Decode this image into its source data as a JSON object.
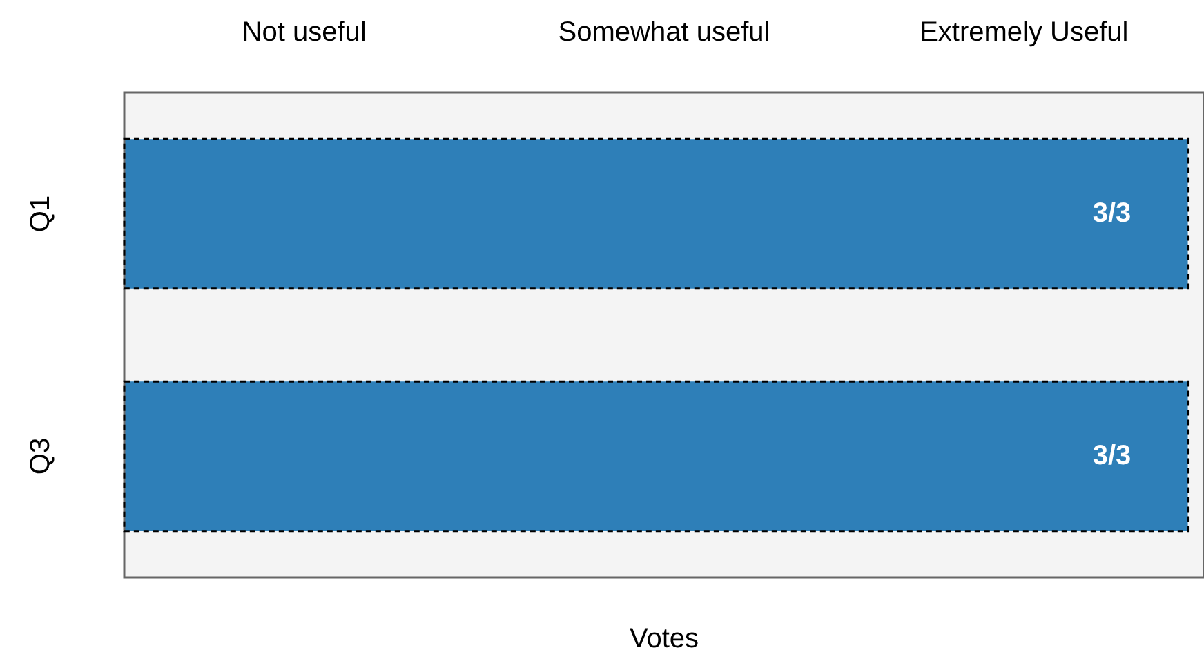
{
  "chart_data": {
    "type": "bar",
    "orientation": "horizontal",
    "xlabel": "Votes",
    "categories": [
      "Q1",
      "Q3"
    ],
    "values": [
      1,
      1
    ],
    "value_labels": [
      "3/3",
      "3/3"
    ],
    "color": "#2e7fb8",
    "annotations": [
      "Not useful",
      "Somewhat useful",
      "Extremely Useful"
    ],
    "grid": false,
    "legend": false
  }
}
